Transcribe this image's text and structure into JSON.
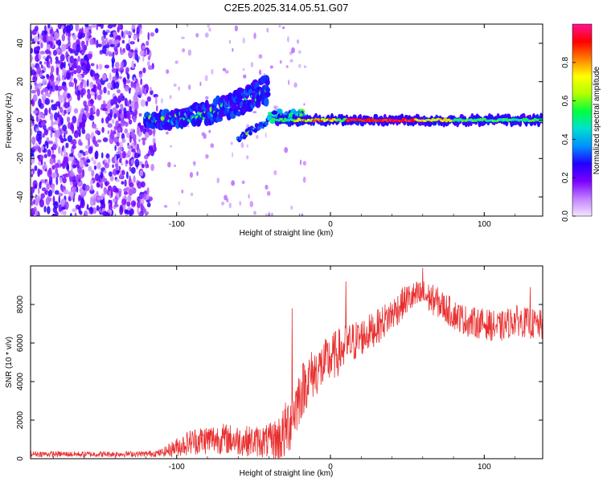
{
  "title": "C2E5.2025.314.05.51.G07",
  "chart_data": [
    {
      "type": "heatmap",
      "title": "C2E5.2025.314.05.51.G07",
      "xlabel": "Height of straight line (km)",
      "ylabel": "Frequency (Hz)",
      "xlim": [
        -195,
        138
      ],
      "ylim": [
        -50,
        50
      ],
      "xticks": [
        -100,
        0,
        100
      ],
      "yticks": [
        40,
        20,
        0,
        -20,
        -40
      ],
      "colorbar": {
        "label": "Normalized spectral amplitude",
        "range": [
          0,
          1
        ],
        "ticks": [
          "0.0",
          "0.2",
          "0.4",
          "0.6",
          "0.8"
        ],
        "colors": [
          "#f4e6ff",
          "#c080ff",
          "#7a00ff",
          "#2000ff",
          "#0090ff",
          "#00e0d0",
          "#00ff40",
          "#b0ff00",
          "#ffff00",
          "#ff8000",
          "#ff0000",
          "#ff1493"
        ]
      },
      "regions": [
        {
          "name": "noise",
          "x_range": [
            -195,
            -110
          ],
          "freq_range": [
            -50,
            50
          ],
          "amplitude": [
            0.05,
            0.25
          ]
        },
        {
          "name": "upper-branch",
          "x_start": -120,
          "x_end": -40,
          "freq_start": 0,
          "freq_end": 16
        },
        {
          "name": "lower-branch",
          "x_start": -60,
          "x_end": -35,
          "freq_start": -10,
          "freq_end": 3
        },
        {
          "name": "main-signal",
          "x_range": [
            -35,
            138
          ],
          "freq": 0,
          "amplitude_peak": 0.95
        }
      ]
    },
    {
      "type": "line",
      "xlabel": "Height of straight line (km)",
      "ylabel": "SNR (10 * v/v)",
      "xlim": [
        -195,
        138
      ],
      "ylim": [
        0,
        10000
      ],
      "xticks": [
        -100,
        0,
        100
      ],
      "yticks": [
        0,
        2000,
        4000,
        6000,
        8000
      ],
      "color": "#e83030",
      "series": [
        {
          "name": "SNR",
          "x": [
            -195,
            -180,
            -160,
            -140,
            -120,
            -110,
            -100,
            -90,
            -80,
            -70,
            -60,
            -50,
            -40,
            -35,
            -30,
            -25,
            -20,
            -15,
            -10,
            -5,
            0,
            10,
            20,
            30,
            40,
            50,
            60,
            70,
            80,
            90,
            100,
            110,
            120,
            130,
            138
          ],
          "y": [
            250,
            240,
            230,
            240,
            250,
            300,
            600,
            900,
            1000,
            1050,
            950,
            900,
            900,
            950,
            1300,
            2200,
            3300,
            4100,
            4500,
            4800,
            5200,
            5800,
            6300,
            6800,
            7500,
            8300,
            8500,
            8100,
            7500,
            7100,
            7000,
            6800,
            7200,
            7000,
            6900
          ],
          "noise": [
            150,
            150,
            150,
            150,
            150,
            200,
            500,
            700,
            800,
            800,
            800,
            800,
            900,
            1200,
            1500,
            1700,
            1500,
            1400,
            1300,
            1300,
            1300,
            1200,
            1000,
            900,
            900,
            800,
            800,
            800,
            800,
            800,
            800,
            800,
            800,
            800,
            800
          ],
          "spikes": [
            {
              "x": -25,
              "y": 7800
            },
            {
              "x": 10,
              "y": 9200
            },
            {
              "x": 60,
              "y": 9900
            },
            {
              "x": 130,
              "y": 8900
            }
          ]
        }
      ]
    }
  ]
}
